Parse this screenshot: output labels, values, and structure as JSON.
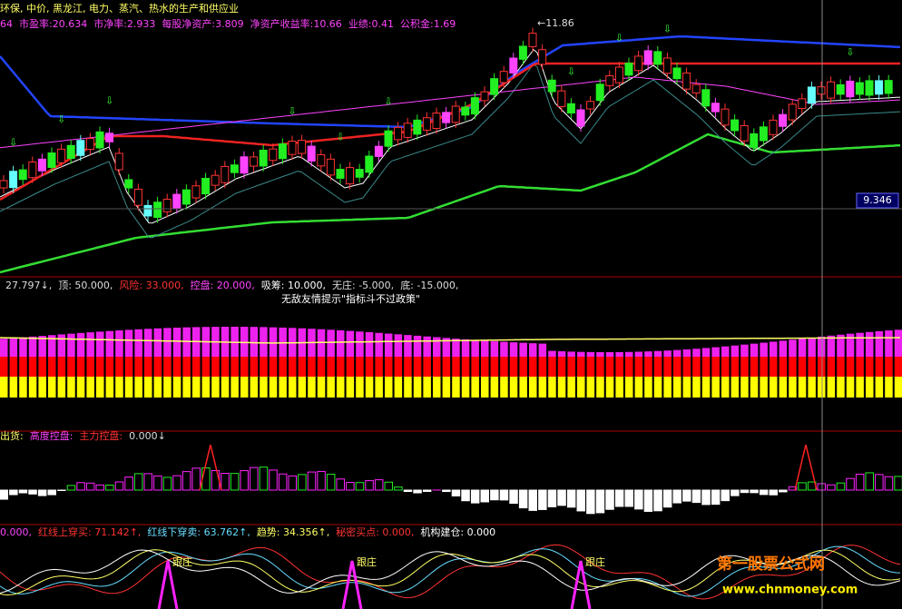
{
  "main_panel": {
    "stock_line": [
      {
        "text": "环保, 中价, 黑龙江, 电力、蒸汽、热水的生产和供应业",
        "color": "#ffff66"
      }
    ],
    "finance_line": [
      {
        "text": "64",
        "color": "#ff44ff"
      },
      {
        "text": "市盈率:20.634",
        "color": "#ff44ff"
      },
      {
        "text": "市净率:2.933",
        "color": "#ff44ff"
      },
      {
        "text": "每股净资产:3.809",
        "color": "#ff44ff"
      },
      {
        "text": "净资产收益率:10.66",
        "color": "#ff44ff"
      },
      {
        "text": "业绩:0.41",
        "color": "#ff44ff"
      },
      {
        "text": "公积金:1.69",
        "color": "#ff44ff"
      }
    ],
    "high_label": "←11.86",
    "price_tag": "9.346"
  },
  "control_panel": {
    "header": [
      {
        "text": "27.797↓,",
        "color": "#dddddd"
      },
      {
        "text": "顶: 50.000,",
        "color": "#dddddd"
      },
      {
        "text": "风险: 33.000,",
        "color": "#ff3333"
      },
      {
        "text": "控盘: 20.000,",
        "color": "#ff44ff"
      },
      {
        "text": "吸筹: 10.000,",
        "color": "#ffffff"
      },
      {
        "text": "无庄: -5.000,",
        "color": "#dddddd"
      },
      {
        "text": "底: -15.000,",
        "color": "#dddddd"
      }
    ],
    "tip": "无敌友情提示\"指标斗不过政策\""
  },
  "flow_panel": {
    "header": [
      {
        "text": "出货:",
        "color": "#ffff66"
      },
      {
        "text": "高度控盘:",
        "color": "#ff44ff"
      },
      {
        "text": "主力控盘:",
        "color": "#ff3333"
      },
      {
        "text": "0.000↓",
        "color": "#dddddd"
      }
    ]
  },
  "trend_panel": {
    "header": [
      {
        "text": "0.000,",
        "color": "#ff44ff"
      },
      {
        "text": "红线上穿买: 71.142↑,",
        "color": "#ff3333"
      },
      {
        "text": "红线下穿卖: 63.762↑,",
        "color": "#66ddff"
      },
      {
        "text": "趋势: 34.356↑,",
        "color": "#ffff66"
      },
      {
        "text": "秘密买点: 0.000,",
        "color": "#ff3333"
      },
      {
        "text": "机构建仓: 0.000",
        "color": "#ffffff"
      }
    ],
    "follow_labels": [
      "跟庄",
      "跟庄",
      "跟庄"
    ]
  },
  "watermark": {
    "site_name": "第一股票公式网",
    "url": "www.chnmoney.com"
  }
}
